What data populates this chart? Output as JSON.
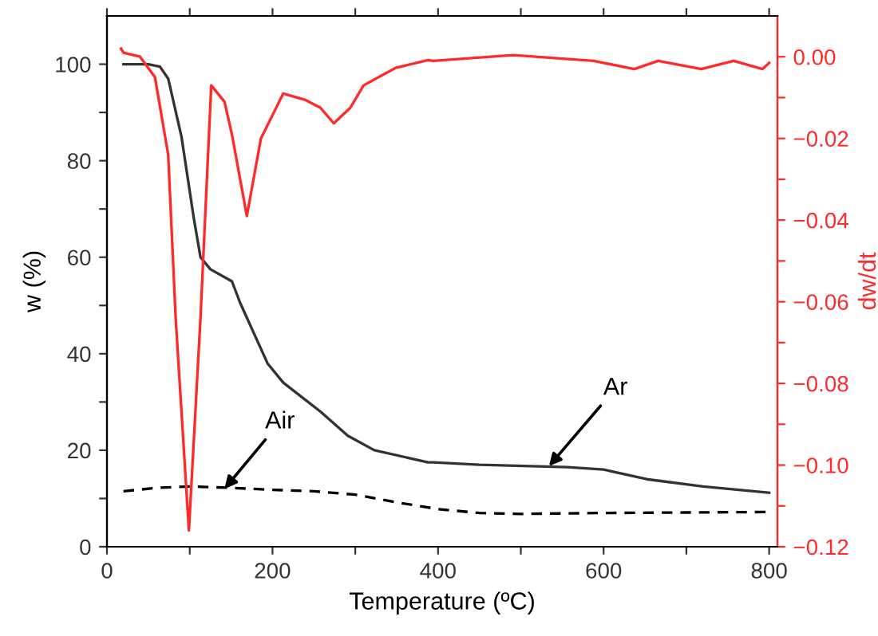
{
  "chart_data": {
    "type": "line",
    "xlabel": "Temperature (ºC)",
    "ylabel": "w (%)",
    "y2label": "dw/dt",
    "xlim": [
      0,
      810
    ],
    "xticks": [
      0,
      {
        "value": 100,
        "label": null
      },
      200,
      {
        "value": 300,
        "label": null
      },
      400,
      {
        "value": 500,
        "label": null
      },
      600,
      {
        "value": 700,
        "label": null
      },
      800
    ],
    "ylim": [
      0,
      110
    ],
    "yticks": [
      0,
      {
        "value": 10,
        "label": null
      },
      20,
      {
        "value": 30,
        "label": null
      },
      40,
      {
        "value": 50,
        "label": null
      },
      60,
      {
        "value": 70,
        "label": null
      },
      80,
      {
        "value": 90,
        "label": null
      },
      100
    ],
    "y2lim": [
      -0.12,
      0.01
    ],
    "y2ticks": [
      {
        "value": -0.12,
        "label": "−0.12"
      },
      {
        "value": -0.11,
        "label": null
      },
      {
        "value": -0.1,
        "label": "−0.10"
      },
      {
        "value": -0.09,
        "label": null
      },
      {
        "value": -0.08,
        "label": "−0.08"
      },
      {
        "value": -0.07,
        "label": null
      },
      {
        "value": -0.06,
        "label": "−0.06"
      },
      {
        "value": -0.05,
        "label": null
      },
      {
        "value": -0.04,
        "label": "−0.04"
      },
      {
        "value": -0.03,
        "label": null
      },
      {
        "value": -0.02,
        "label": "−0.02"
      },
      {
        "value": -0.01,
        "label": null
      },
      {
        "value": 0,
        "label": "0.00"
      }
    ],
    "grid": false,
    "legend": false,
    "marker": "none",
    "series": [
      {
        "color": "#333333",
        "line_style": "solid",
        "x": [
          20,
          50,
          64,
          74,
          90,
          105,
          113,
          125,
          151,
          161,
          194,
          213,
          258,
          291,
          323,
          388,
          394,
          450,
          556,
          600,
          652,
          720,
          800
        ],
        "values": [
          100,
          100,
          99.5,
          97,
          85,
          68,
          60,
          57.5,
          55,
          50.5,
          38,
          34,
          28,
          23,
          20,
          17.5,
          17.5,
          17,
          16.5,
          16,
          14,
          12.5,
          11.2
        ]
      },
      {
        "color": "#000000",
        "line_style": "dashed",
        "x": [
          20,
          60,
          100,
          150,
          200,
          250,
          300,
          350,
          400,
          450,
          500,
          600,
          700,
          800
        ],
        "values": [
          11.5,
          12.2,
          12.5,
          12.2,
          11.8,
          11.5,
          10.8,
          9.2,
          7.8,
          7,
          6.8,
          7,
          7.1,
          7.2
        ]
      },
      {
        "color": "#ff2a2a",
        "line_style": "solid",
        "axis": "y2",
        "x": [
          17,
          20,
          40,
          58,
          74,
          83,
          99,
          113,
          126,
          142,
          151,
          169,
          186,
          213,
          239,
          258,
          274,
          294,
          310,
          349,
          388,
          394,
          491,
          588,
          637,
          666,
          718,
          757,
          792,
          800
        ],
        "values": [
          0.002,
          0.001,
          0.0,
          -0.005,
          -0.024,
          -0.064,
          -0.116,
          -0.064,
          -0.007,
          -0.011,
          -0.019,
          -0.039,
          -0.02,
          -0.009,
          -0.0105,
          -0.0125,
          -0.0163,
          -0.0125,
          -0.007,
          -0.0027,
          -0.0008,
          -0.001,
          0.0004,
          -0.001,
          -0.003,
          -0.001,
          -0.003,
          -0.001,
          -0.003,
          -0.0015
        ]
      }
    ],
    "annotations": [
      {
        "text": "Air",
        "x": 142,
        "y": 12
      },
      {
        "text": "Ar",
        "x": 534,
        "y": 16.7
      }
    ]
  }
}
